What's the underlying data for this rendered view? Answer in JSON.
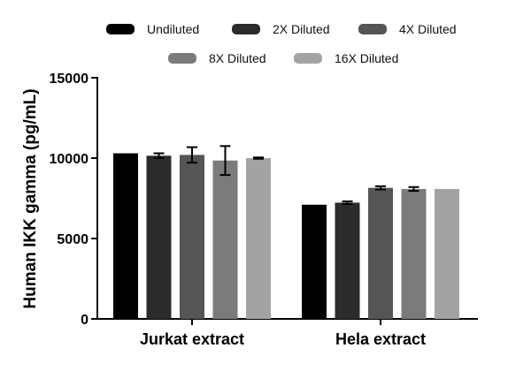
{
  "chart_data": {
    "type": "bar",
    "title": "",
    "xlabel": "",
    "ylabel": "Human IKK gamma (pg/mL)",
    "ylim": [
      0,
      15000
    ],
    "yticks": [
      0,
      5000,
      10000,
      15000
    ],
    "ytick_labels": [
      "0",
      "5000",
      "10000",
      "15000"
    ],
    "categories": [
      "Jurkat extract",
      "Hela extract"
    ],
    "legend_position": "top",
    "series": [
      {
        "name": "Undiluted",
        "color": "#000000",
        "values": [
          10300,
          7100
        ],
        "errors": [
          0,
          0
        ]
      },
      {
        "name": "2X Diluted",
        "color": "#2b2b2b",
        "values": [
          10150,
          7230
        ],
        "errors": [
          150,
          80
        ]
      },
      {
        "name": "4X Diluted",
        "color": "#555555",
        "values": [
          10200,
          8150
        ],
        "errors": [
          480,
          100
        ]
      },
      {
        "name": "8X Diluted",
        "color": "#7b7b7b",
        "values": [
          9850,
          8080
        ],
        "errors": [
          900,
          120
        ]
      },
      {
        "name": "16X Diluted",
        "color": "#a3a3a3",
        "values": [
          10000,
          8080
        ],
        "errors": [
          40,
          0
        ]
      }
    ]
  }
}
